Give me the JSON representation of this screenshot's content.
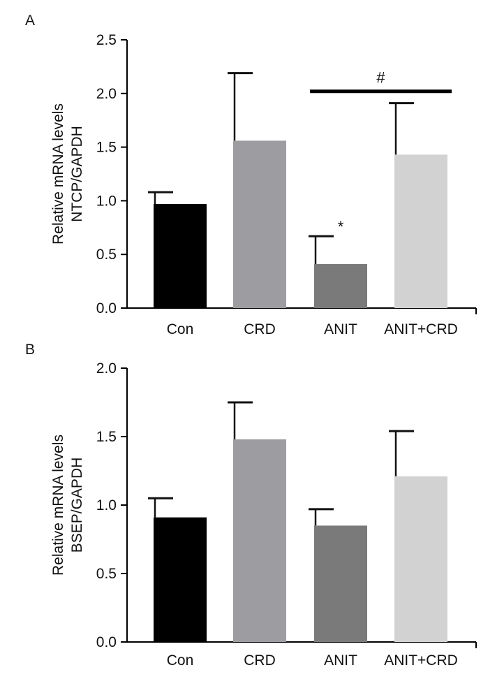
{
  "chart_data": [
    {
      "panel": "A",
      "type": "bar",
      "categories": [
        "Con",
        "CRD",
        "ANIT",
        "ANIT+CRD"
      ],
      "values": [
        0.97,
        1.56,
        0.41,
        1.43
      ],
      "errors": [
        0.11,
        0.63,
        0.26,
        0.48
      ],
      "colors": [
        "#000000",
        "#9c9ca1",
        "#7a7a7a",
        "#d2d2d2"
      ],
      "ylabel_line1": "Relative mRNA levels",
      "ylabel_line2": "NTCP/GAPDH",
      "ylim": [
        0,
        2.5
      ],
      "yticks": [
        "0.0",
        "0.5",
        "1.0",
        "1.5",
        "2.0",
        "2.5"
      ],
      "annotations": [
        {
          "text": "*",
          "category": "ANIT"
        },
        {
          "text": "#",
          "from": "ANIT",
          "to": "ANIT+CRD",
          "level": 2.02
        }
      ]
    },
    {
      "panel": "B",
      "type": "bar",
      "categories": [
        "Con",
        "CRD",
        "ANIT",
        "ANIT+CRD"
      ],
      "values": [
        0.91,
        1.48,
        0.85,
        1.21
      ],
      "errors": [
        0.14,
        0.27,
        0.12,
        0.33
      ],
      "colors": [
        "#000000",
        "#9c9ca1",
        "#7a7a7a",
        "#d2d2d2"
      ],
      "ylabel_line1": "Relative mRNA levels",
      "ylabel_line2": "BSEP/GAPDH",
      "ylim": [
        0,
        2.0
      ],
      "yticks": [
        "0.0",
        "0.5",
        "1.0",
        "1.5",
        "2.0"
      ],
      "annotations": []
    }
  ]
}
